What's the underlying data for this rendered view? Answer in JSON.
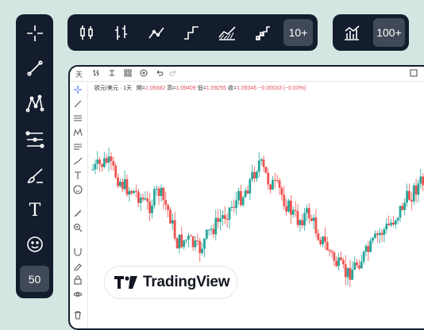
{
  "left_toolbar": {
    "tools": [
      {
        "icon": "crosshair-icon"
      },
      {
        "icon": "trend-line-icon"
      },
      {
        "icon": "pattern-icon"
      },
      {
        "icon": "fib-retracement-icon"
      },
      {
        "icon": "brush-icon"
      },
      {
        "icon": "text-icon",
        "label": "T"
      },
      {
        "icon": "smiley-icon"
      }
    ],
    "more_label": "50"
  },
  "top_toolbar": {
    "chart_types": [
      {
        "icon": "candles-icon"
      },
      {
        "icon": "bars-icon"
      },
      {
        "icon": "line-icon"
      },
      {
        "icon": "step-line-icon"
      },
      {
        "icon": "area-icon"
      },
      {
        "icon": "baseline-icon"
      }
    ],
    "more_label": "10+"
  },
  "right_toolbar": {
    "indicator_icon": "indicators-icon",
    "more_label": "100+"
  },
  "chart_window": {
    "toolbar": {
      "interval": "天"
    },
    "legend": {
      "symbol": "欧元/美元 · 1天",
      "open_label": "開=",
      "open_value": "1.09382",
      "high_label": "高=",
      "high_value": "1.09409",
      "low_label": "低=",
      "low_value": "1.09255",
      "close_label": "收=",
      "close_value": "1.09345",
      "change_value": "−0.00033 (−0.03%)"
    }
  },
  "logo": {
    "text": "TradingView"
  },
  "colors": {
    "up": "#26a69a",
    "down": "#ef5350",
    "panel": "#131d2d",
    "background": "#d4e6e1"
  }
}
